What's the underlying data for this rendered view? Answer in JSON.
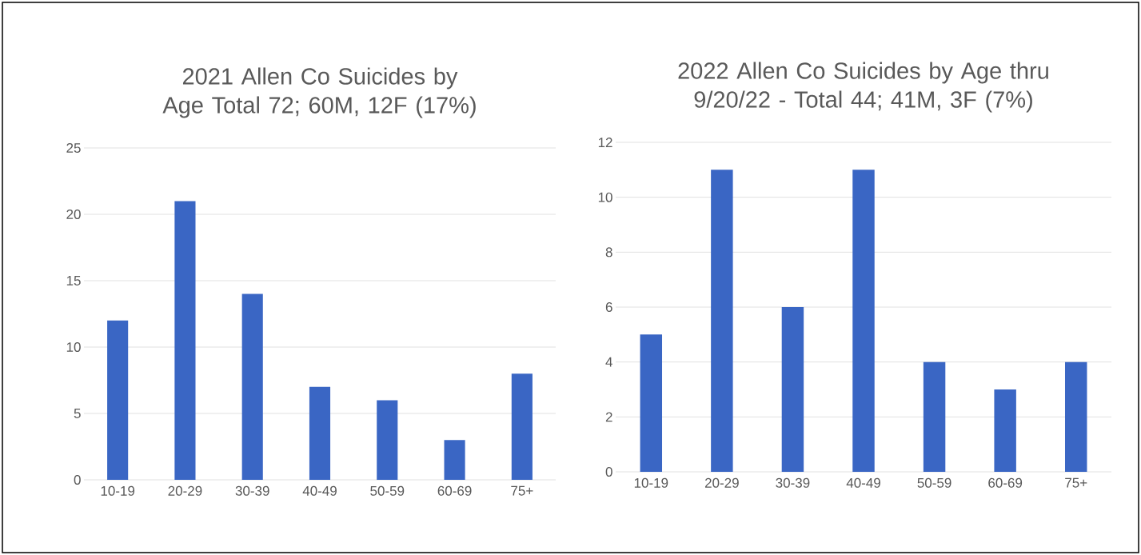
{
  "chart_data": [
    {
      "type": "bar",
      "title": "2021 Allen Co Suicides by Age Total 72; 60M, 12F (17%)",
      "categories": [
        "10-19",
        "20-29",
        "30-39",
        "40-49",
        "50-59",
        "60-69",
        "75+"
      ],
      "values": [
        12,
        21,
        14,
        7,
        6,
        3,
        8
      ],
      "color": "#3a66c4",
      "ylim": [
        0,
        25
      ],
      "yticks": [
        0,
        5,
        10,
        15,
        20,
        25
      ],
      "grid": "y"
    },
    {
      "type": "bar",
      "title": "2022 Allen Co Suicides by Age thru 9/20/22  - Total 44; 41M, 3F (7%)",
      "categories": [
        "10-19",
        "20-29",
        "30-39",
        "40-49",
        "50-59",
        "60-69",
        "75+"
      ],
      "values": [
        5,
        11,
        6,
        11,
        4,
        3,
        4
      ],
      "color": "#3a66c4",
      "ylim": [
        0,
        12
      ],
      "yticks": [
        0,
        2,
        4,
        6,
        8,
        10,
        12
      ],
      "grid": "y"
    }
  ]
}
